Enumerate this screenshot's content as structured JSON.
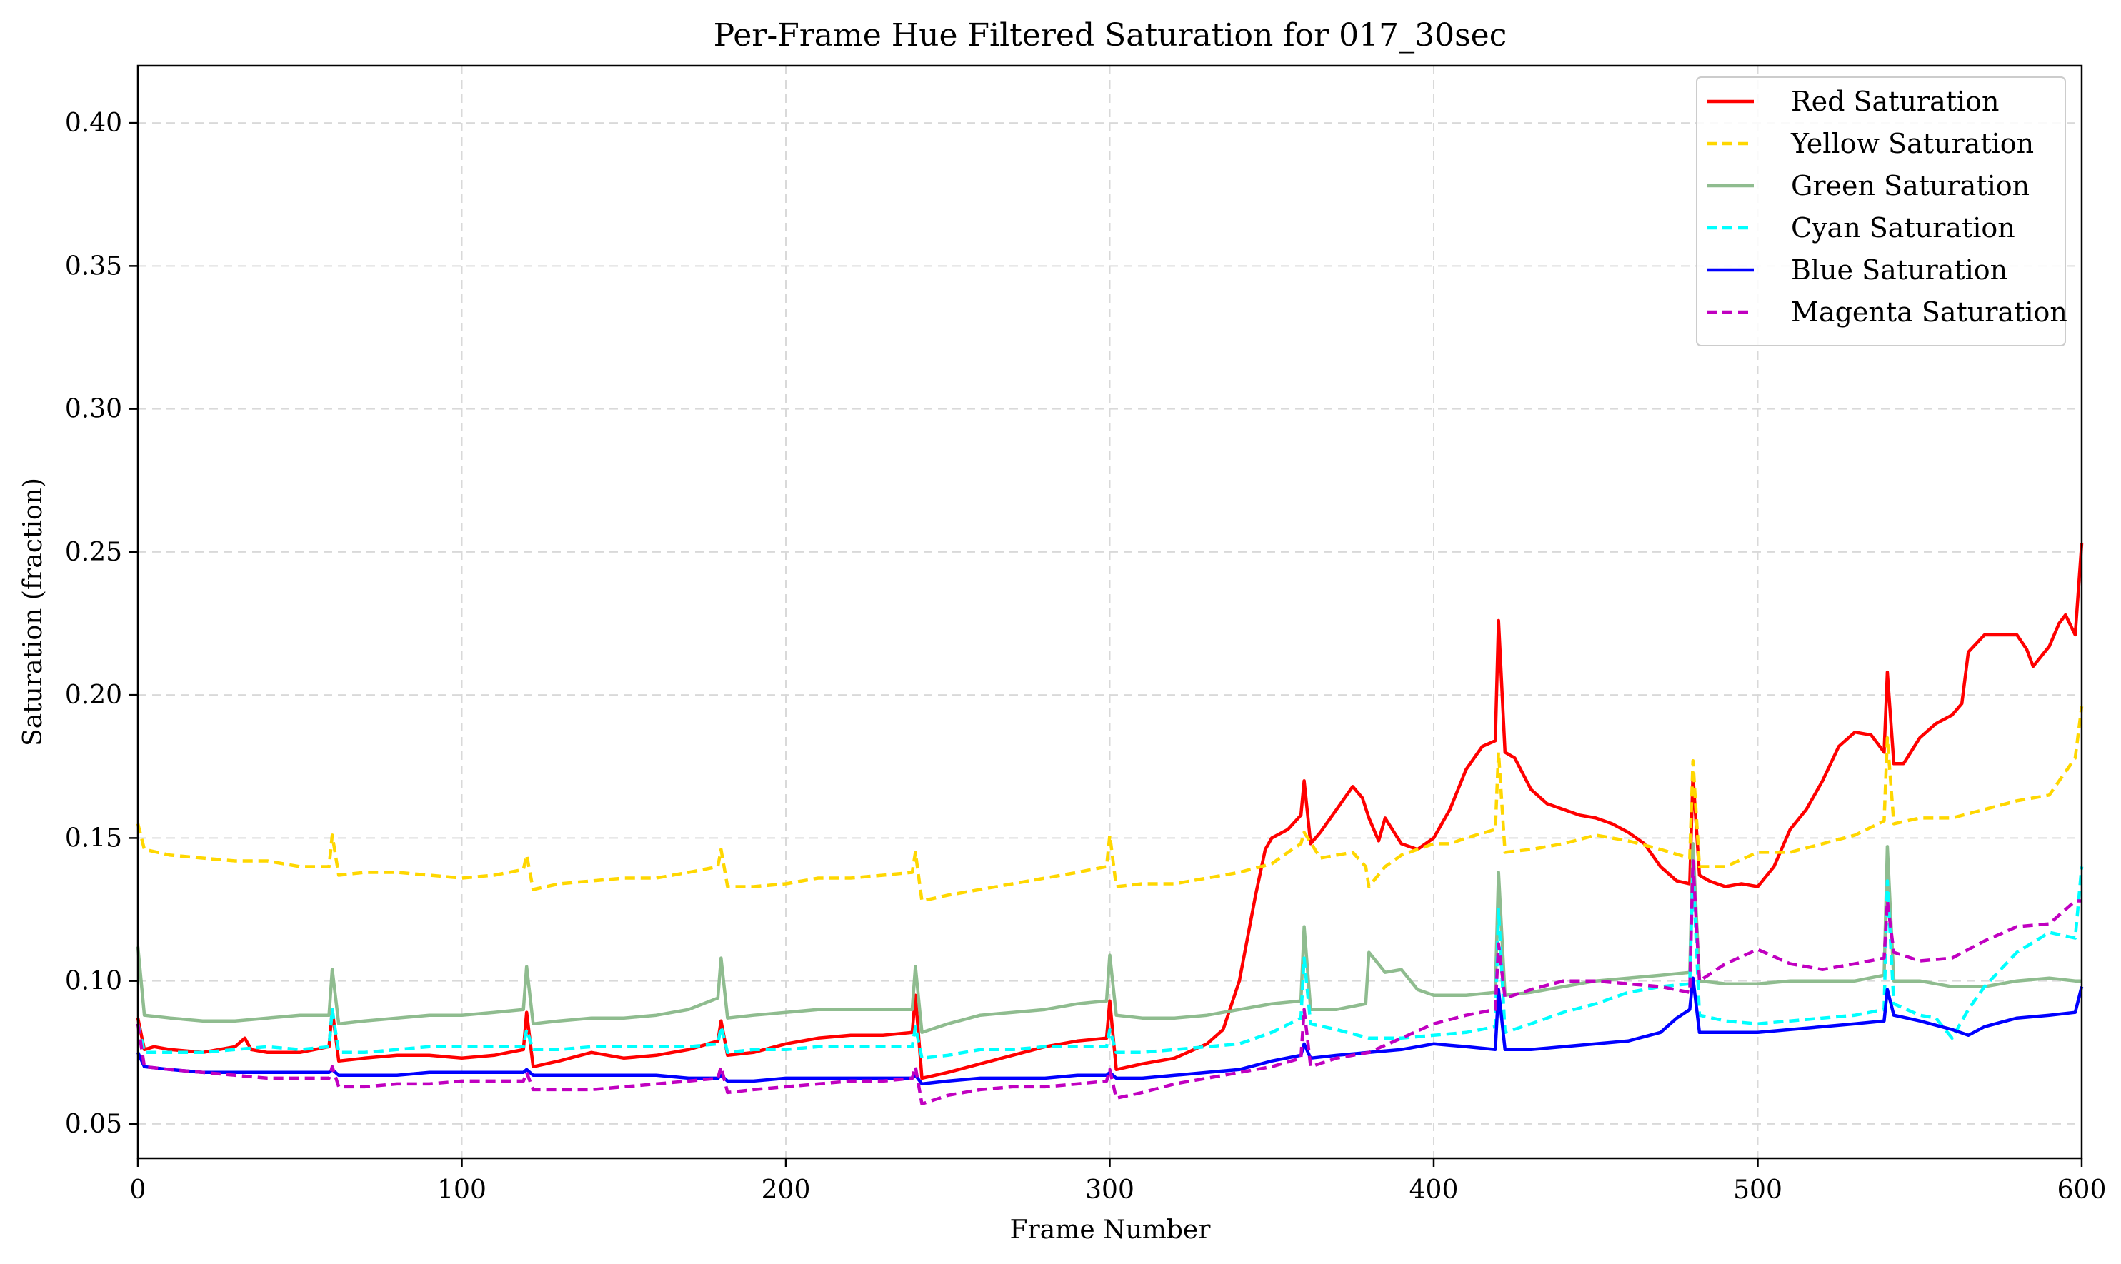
{
  "chart_data": {
    "type": "line",
    "title": "Per-Frame Hue Filtered Saturation for 017_30sec",
    "xlabel": "Frame Number",
    "ylabel": "Saturation (fraction)",
    "xlim": [
      0,
      600
    ],
    "ylim": [
      0.038,
      0.42
    ],
    "xticks": [
      0,
      100,
      200,
      300,
      400,
      500,
      600
    ],
    "xtick_labels": [
      "0",
      "100",
      "200",
      "300",
      "400",
      "500",
      "600"
    ],
    "yticks": [
      0.05,
      0.1,
      0.15,
      0.2,
      0.25,
      0.3,
      0.35,
      0.4
    ],
    "ytick_labels": [
      "0.05",
      "0.10",
      "0.15",
      "0.20",
      "0.25",
      "0.30",
      "0.35",
      "0.40"
    ],
    "grid": true,
    "legend_position": "top-right",
    "series": [
      {
        "name": "Red Saturation",
        "color": "#ff0000",
        "style": "solid",
        "x": [
          0,
          2,
          5,
          10,
          20,
          30,
          33,
          35,
          40,
          50,
          59,
          60,
          62,
          70,
          80,
          90,
          100,
          110,
          119,
          120,
          122,
          130,
          140,
          150,
          160,
          170,
          179,
          180,
          182,
          190,
          200,
          210,
          220,
          230,
          239,
          240,
          242,
          250,
          260,
          270,
          280,
          290,
          299,
          300,
          302,
          310,
          320,
          330,
          335,
          340,
          345,
          348,
          350,
          355,
          359,
          360,
          362,
          365,
          370,
          375,
          378,
          380,
          383,
          385,
          390,
          395,
          400,
          403,
          405,
          410,
          415,
          419,
          420,
          422,
          425,
          430,
          435,
          440,
          445,
          450,
          455,
          460,
          465,
          470,
          475,
          479,
          480,
          482,
          485,
          490,
          495,
          500,
          505,
          510,
          515,
          520,
          525,
          530,
          535,
          539,
          540,
          542,
          545,
          550,
          555,
          560,
          563,
          565,
          570,
          575,
          580,
          583,
          585,
          590,
          593,
          595,
          598,
          600
        ],
        "values": [
          0.087,
          0.076,
          0.077,
          0.076,
          0.075,
          0.077,
          0.08,
          0.076,
          0.075,
          0.075,
          0.077,
          0.09,
          0.072,
          0.073,
          0.074,
          0.074,
          0.073,
          0.074,
          0.076,
          0.089,
          0.07,
          0.072,
          0.075,
          0.073,
          0.074,
          0.076,
          0.079,
          0.086,
          0.074,
          0.075,
          0.078,
          0.08,
          0.081,
          0.081,
          0.082,
          0.095,
          0.066,
          0.068,
          0.071,
          0.074,
          0.077,
          0.079,
          0.08,
          0.093,
          0.069,
          0.071,
          0.073,
          0.078,
          0.083,
          0.1,
          0.13,
          0.146,
          0.15,
          0.153,
          0.158,
          0.17,
          0.148,
          0.152,
          0.16,
          0.168,
          0.164,
          0.157,
          0.149,
          0.157,
          0.148,
          0.146,
          0.15,
          0.156,
          0.16,
          0.174,
          0.182,
          0.184,
          0.226,
          0.18,
          0.178,
          0.167,
          0.162,
          0.16,
          0.158,
          0.157,
          0.155,
          0.152,
          0.148,
          0.14,
          0.135,
          0.134,
          0.172,
          0.137,
          0.135,
          0.133,
          0.134,
          0.133,
          0.14,
          0.153,
          0.16,
          0.17,
          0.182,
          0.187,
          0.186,
          0.18,
          0.208,
          0.176,
          0.176,
          0.185,
          0.19,
          0.193,
          0.197,
          0.215,
          0.221,
          0.221,
          0.221,
          0.216,
          0.21,
          0.217,
          0.225,
          0.228,
          0.221,
          0.253
        ]
      },
      {
        "name": "Yellow Saturation",
        "color": "#ffd700",
        "style": "dashed",
        "x": [
          0,
          2,
          10,
          20,
          30,
          40,
          50,
          59,
          60,
          62,
          70,
          80,
          90,
          100,
          110,
          119,
          120,
          122,
          130,
          140,
          150,
          160,
          170,
          179,
          180,
          182,
          190,
          200,
          210,
          220,
          230,
          239,
          240,
          242,
          250,
          260,
          270,
          280,
          290,
          299,
          300,
          302,
          310,
          320,
          330,
          340,
          350,
          355,
          359,
          360,
          365,
          370,
          375,
          379,
          380,
          385,
          390,
          395,
          400,
          405,
          410,
          419,
          420,
          422,
          430,
          440,
          450,
          460,
          470,
          479,
          480,
          482,
          490,
          500,
          510,
          520,
          530,
          539,
          540,
          542,
          550,
          560,
          570,
          580,
          590,
          598,
          600
        ],
        "values": [
          0.155,
          0.146,
          0.144,
          0.143,
          0.142,
          0.142,
          0.14,
          0.14,
          0.151,
          0.137,
          0.138,
          0.138,
          0.137,
          0.136,
          0.137,
          0.139,
          0.144,
          0.132,
          0.134,
          0.135,
          0.136,
          0.136,
          0.138,
          0.14,
          0.146,
          0.133,
          0.133,
          0.134,
          0.136,
          0.136,
          0.137,
          0.138,
          0.145,
          0.128,
          0.13,
          0.132,
          0.134,
          0.136,
          0.138,
          0.14,
          0.151,
          0.133,
          0.134,
          0.134,
          0.136,
          0.138,
          0.141,
          0.145,
          0.148,
          0.152,
          0.143,
          0.144,
          0.145,
          0.14,
          0.133,
          0.14,
          0.144,
          0.146,
          0.148,
          0.148,
          0.15,
          0.153,
          0.18,
          0.145,
          0.146,
          0.148,
          0.151,
          0.149,
          0.146,
          0.143,
          0.177,
          0.14,
          0.14,
          0.145,
          0.145,
          0.148,
          0.151,
          0.156,
          0.185,
          0.155,
          0.157,
          0.157,
          0.16,
          0.163,
          0.165,
          0.178,
          0.196
        ]
      },
      {
        "name": "Green Saturation",
        "color": "#8fbc8f",
        "style": "solid",
        "x": [
          0,
          2,
          10,
          20,
          30,
          40,
          50,
          59,
          60,
          62,
          70,
          80,
          90,
          100,
          110,
          119,
          120,
          122,
          130,
          140,
          150,
          160,
          170,
          179,
          180,
          182,
          190,
          200,
          210,
          220,
          230,
          239,
          240,
          242,
          250,
          260,
          270,
          280,
          290,
          299,
          300,
          302,
          310,
          320,
          330,
          340,
          350,
          359,
          360,
          362,
          370,
          379,
          380,
          385,
          390,
          395,
          400,
          410,
          419,
          420,
          422,
          430,
          440,
          450,
          460,
          470,
          479,
          480,
          482,
          490,
          500,
          510,
          520,
          530,
          539,
          540,
          542,
          550,
          560,
          570,
          580,
          590,
          598,
          600
        ],
        "values": [
          0.112,
          0.088,
          0.087,
          0.086,
          0.086,
          0.087,
          0.088,
          0.088,
          0.104,
          0.085,
          0.086,
          0.087,
          0.088,
          0.088,
          0.089,
          0.09,
          0.105,
          0.085,
          0.086,
          0.087,
          0.087,
          0.088,
          0.09,
          0.094,
          0.108,
          0.087,
          0.088,
          0.089,
          0.09,
          0.09,
          0.09,
          0.09,
          0.105,
          0.082,
          0.085,
          0.088,
          0.089,
          0.09,
          0.092,
          0.093,
          0.109,
          0.088,
          0.087,
          0.087,
          0.088,
          0.09,
          0.092,
          0.093,
          0.119,
          0.09,
          0.09,
          0.092,
          0.11,
          0.103,
          0.104,
          0.097,
          0.095,
          0.095,
          0.096,
          0.138,
          0.095,
          0.096,
          0.098,
          0.1,
          0.101,
          0.102,
          0.103,
          0.148,
          0.1,
          0.099,
          0.099,
          0.1,
          0.1,
          0.1,
          0.102,
          0.147,
          0.1,
          0.1,
          0.098,
          0.098,
          0.1,
          0.101,
          0.1,
          0.1
        ]
      },
      {
        "name": "Cyan Saturation",
        "color": "#00ffff",
        "style": "dashed",
        "x": [
          0,
          2,
          10,
          20,
          30,
          40,
          50,
          59,
          60,
          62,
          70,
          80,
          90,
          100,
          110,
          119,
          120,
          122,
          130,
          140,
          150,
          160,
          170,
          179,
          180,
          182,
          190,
          200,
          210,
          220,
          230,
          239,
          240,
          242,
          250,
          260,
          270,
          280,
          290,
          299,
          300,
          302,
          310,
          320,
          330,
          340,
          350,
          359,
          360,
          362,
          370,
          380,
          390,
          400,
          410,
          419,
          420,
          422,
          430,
          440,
          450,
          460,
          470,
          479,
          480,
          482,
          490,
          500,
          510,
          520,
          530,
          539,
          540,
          542,
          550,
          555,
          560,
          565,
          570,
          580,
          590,
          598,
          600
        ],
        "values": [
          0.085,
          0.075,
          0.075,
          0.075,
          0.076,
          0.077,
          0.076,
          0.077,
          0.09,
          0.075,
          0.075,
          0.076,
          0.077,
          0.077,
          0.077,
          0.077,
          0.083,
          0.076,
          0.076,
          0.077,
          0.077,
          0.077,
          0.077,
          0.078,
          0.084,
          0.075,
          0.076,
          0.076,
          0.077,
          0.077,
          0.077,
          0.077,
          0.084,
          0.073,
          0.074,
          0.076,
          0.076,
          0.077,
          0.077,
          0.077,
          0.083,
          0.075,
          0.075,
          0.076,
          0.077,
          0.078,
          0.082,
          0.087,
          0.108,
          0.085,
          0.083,
          0.08,
          0.08,
          0.081,
          0.082,
          0.084,
          0.125,
          0.082,
          0.085,
          0.089,
          0.092,
          0.096,
          0.098,
          0.099,
          0.139,
          0.088,
          0.086,
          0.085,
          0.086,
          0.087,
          0.088,
          0.09,
          0.135,
          0.092,
          0.088,
          0.087,
          0.08,
          0.09,
          0.098,
          0.11,
          0.117,
          0.115,
          0.14
        ]
      },
      {
        "name": "Blue Saturation",
        "color": "#0000ff",
        "style": "solid",
        "x": [
          0,
          2,
          10,
          20,
          30,
          40,
          50,
          59,
          60,
          62,
          70,
          80,
          90,
          100,
          110,
          119,
          120,
          122,
          130,
          140,
          150,
          160,
          170,
          179,
          180,
          182,
          190,
          200,
          210,
          220,
          230,
          239,
          240,
          242,
          250,
          260,
          270,
          280,
          290,
          299,
          300,
          302,
          310,
          320,
          330,
          340,
          350,
          359,
          360,
          362,
          370,
          380,
          390,
          400,
          410,
          419,
          420,
          422,
          430,
          440,
          450,
          460,
          470,
          475,
          479,
          480,
          482,
          490,
          500,
          510,
          520,
          530,
          539,
          540,
          542,
          550,
          560,
          565,
          570,
          580,
          590,
          598,
          600
        ],
        "values": [
          0.075,
          0.07,
          0.069,
          0.068,
          0.068,
          0.068,
          0.068,
          0.068,
          0.069,
          0.067,
          0.067,
          0.067,
          0.068,
          0.068,
          0.068,
          0.068,
          0.069,
          0.067,
          0.067,
          0.067,
          0.067,
          0.067,
          0.066,
          0.066,
          0.067,
          0.065,
          0.065,
          0.066,
          0.066,
          0.066,
          0.066,
          0.066,
          0.067,
          0.064,
          0.065,
          0.066,
          0.066,
          0.066,
          0.067,
          0.067,
          0.068,
          0.066,
          0.066,
          0.067,
          0.068,
          0.069,
          0.072,
          0.074,
          0.078,
          0.073,
          0.074,
          0.075,
          0.076,
          0.078,
          0.077,
          0.076,
          0.097,
          0.076,
          0.076,
          0.077,
          0.078,
          0.079,
          0.082,
          0.087,
          0.09,
          0.101,
          0.082,
          0.082,
          0.082,
          0.083,
          0.084,
          0.085,
          0.086,
          0.097,
          0.088,
          0.086,
          0.083,
          0.081,
          0.084,
          0.087,
          0.088,
          0.089,
          0.098
        ]
      },
      {
        "name": "Magenta Saturation",
        "color": "#c000c0",
        "style": "dashed",
        "x": [
          0,
          2,
          10,
          20,
          30,
          40,
          50,
          59,
          60,
          62,
          70,
          80,
          90,
          100,
          110,
          119,
          120,
          122,
          130,
          140,
          150,
          160,
          170,
          179,
          180,
          182,
          190,
          200,
          210,
          220,
          230,
          239,
          240,
          242,
          250,
          260,
          270,
          280,
          290,
          299,
          300,
          302,
          310,
          320,
          330,
          340,
          350,
          359,
          360,
          362,
          370,
          380,
          390,
          400,
          410,
          419,
          420,
          422,
          430,
          440,
          450,
          460,
          470,
          479,
          480,
          482,
          490,
          500,
          510,
          520,
          530,
          539,
          540,
          542,
          550,
          560,
          570,
          580,
          590,
          598,
          600
        ],
        "values": [
          0.085,
          0.07,
          0.069,
          0.068,
          0.067,
          0.066,
          0.066,
          0.066,
          0.07,
          0.063,
          0.063,
          0.064,
          0.064,
          0.065,
          0.065,
          0.065,
          0.068,
          0.062,
          0.062,
          0.062,
          0.063,
          0.064,
          0.065,
          0.066,
          0.07,
          0.061,
          0.062,
          0.063,
          0.064,
          0.065,
          0.065,
          0.066,
          0.07,
          0.057,
          0.06,
          0.062,
          0.063,
          0.063,
          0.064,
          0.065,
          0.069,
          0.059,
          0.061,
          0.064,
          0.066,
          0.068,
          0.07,
          0.073,
          0.09,
          0.07,
          0.073,
          0.075,
          0.08,
          0.085,
          0.088,
          0.09,
          0.113,
          0.094,
          0.097,
          0.1,
          0.1,
          0.099,
          0.098,
          0.096,
          0.142,
          0.1,
          0.106,
          0.111,
          0.106,
          0.104,
          0.106,
          0.108,
          0.128,
          0.11,
          0.107,
          0.108,
          0.114,
          0.119,
          0.12,
          0.128,
          0.128
        ]
      }
    ]
  }
}
